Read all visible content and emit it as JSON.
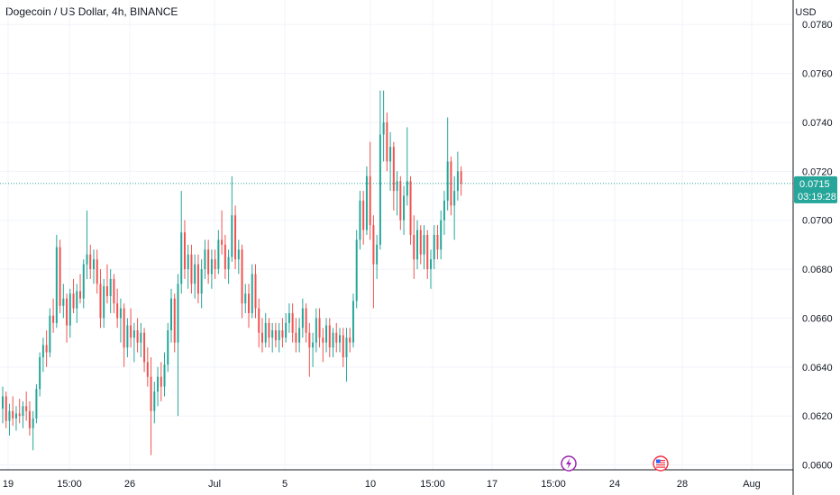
{
  "header": {
    "title": "Dogecoin / US Dollar, 4h, BINANCE",
    "currency": "USD"
  },
  "current_price": {
    "value": "0.0715",
    "countdown": "03:19:28",
    "color": "#26a69a"
  },
  "colors": {
    "up": "#26a69a",
    "down": "#ef5350",
    "grid": "#f0f3fa",
    "axis_text": "#131722",
    "event_lightning": "#9c27b0",
    "event_flag": "#f23645"
  },
  "event_icons": [
    {
      "name": "lightning-event-icon",
      "glyph": "⚡",
      "x_label": "~20 Jul"
    },
    {
      "name": "us-flag-event-icon",
      "glyph": "🇺🇸",
      "x_label": "~26 Jul"
    }
  ],
  "chart_data": {
    "type": "candlestick",
    "title": "Dogecoin / US Dollar, 4h, BINANCE",
    "interval": "4h",
    "ylim": [
      0.0598,
      0.079
    ],
    "y_ticks": [
      "0.0600",
      "0.0620",
      "0.0640",
      "0.0660",
      "0.0680",
      "0.0700",
      "0.0720",
      "0.0740",
      "0.0760",
      "0.0780"
    ],
    "x_ticks": [
      "19",
      "15:00",
      "26",
      "Jul",
      "5",
      "10",
      "15:00",
      "17",
      "15:00",
      "24",
      "28",
      "Aug"
    ],
    "grid": true,
    "candles": [
      [
        0.0623,
        0.0632,
        0.0617,
        0.0628
      ],
      [
        0.0628,
        0.063,
        0.0615,
        0.0618
      ],
      [
        0.0618,
        0.0625,
        0.0612,
        0.0622
      ],
      [
        0.0622,
        0.0628,
        0.0616,
        0.0619
      ],
      [
        0.0619,
        0.0624,
        0.0614,
        0.0621
      ],
      [
        0.0621,
        0.0627,
        0.0617,
        0.062
      ],
      [
        0.062,
        0.0626,
        0.0615,
        0.0624
      ],
      [
        0.0624,
        0.063,
        0.0618,
        0.0622
      ],
      [
        0.0622,
        0.0626,
        0.0612,
        0.0615
      ],
      [
        0.0615,
        0.0622,
        0.0606,
        0.0619
      ],
      [
        0.0619,
        0.0633,
        0.0617,
        0.0631
      ],
      [
        0.0631,
        0.0646,
        0.0628,
        0.0644
      ],
      [
        0.0644,
        0.0652,
        0.0638,
        0.0649
      ],
      [
        0.0649,
        0.0655,
        0.064,
        0.0646
      ],
      [
        0.0646,
        0.0664,
        0.0644,
        0.0661
      ],
      [
        0.0661,
        0.0668,
        0.0654,
        0.0658
      ],
      [
        0.0658,
        0.0694,
        0.0656,
        0.0689
      ],
      [
        0.0689,
        0.0692,
        0.0662,
        0.0665
      ],
      [
        0.0665,
        0.0674,
        0.066,
        0.0668
      ],
      [
        0.0668,
        0.067,
        0.065,
        0.0657
      ],
      [
        0.0657,
        0.0672,
        0.0652,
        0.067
      ],
      [
        0.067,
        0.0676,
        0.0662,
        0.0664
      ],
      [
        0.0664,
        0.0674,
        0.0658,
        0.0671
      ],
      [
        0.0671,
        0.0678,
        0.0666,
        0.0668
      ],
      [
        0.0668,
        0.0684,
        0.0664,
        0.0682
      ],
      [
        0.0682,
        0.0704,
        0.0676,
        0.0686
      ],
      [
        0.0686,
        0.069,
        0.0676,
        0.068
      ],
      [
        0.068,
        0.0688,
        0.0674,
        0.0684
      ],
      [
        0.0684,
        0.0688,
        0.067,
        0.0674
      ],
      [
        0.0674,
        0.068,
        0.0656,
        0.066
      ],
      [
        0.066,
        0.0676,
        0.0656,
        0.0673
      ],
      [
        0.0673,
        0.0682,
        0.0666,
        0.0669
      ],
      [
        0.0669,
        0.068,
        0.0662,
        0.0676
      ],
      [
        0.0676,
        0.0678,
        0.0662,
        0.0666
      ],
      [
        0.0666,
        0.0672,
        0.0656,
        0.066
      ],
      [
        0.066,
        0.0668,
        0.065,
        0.0664
      ],
      [
        0.0664,
        0.0666,
        0.064,
        0.0648
      ],
      [
        0.0648,
        0.066,
        0.0644,
        0.0657
      ],
      [
        0.0657,
        0.0664,
        0.0648,
        0.0652
      ],
      [
        0.0652,
        0.0658,
        0.0642,
        0.0655
      ],
      [
        0.0655,
        0.066,
        0.0646,
        0.065
      ],
      [
        0.065,
        0.0658,
        0.0644,
        0.0654
      ],
      [
        0.0654,
        0.0656,
        0.0638,
        0.0642
      ],
      [
        0.0642,
        0.0648,
        0.0632,
        0.0636
      ],
      [
        0.0636,
        0.0644,
        0.0604,
        0.0622
      ],
      [
        0.0622,
        0.0634,
        0.0617,
        0.063
      ],
      [
        0.063,
        0.064,
        0.0624,
        0.0636
      ],
      [
        0.0636,
        0.0642,
        0.0626,
        0.0632
      ],
      [
        0.0632,
        0.0646,
        0.0628,
        0.0641
      ],
      [
        0.0641,
        0.0658,
        0.0638,
        0.0655
      ],
      [
        0.0655,
        0.0672,
        0.065,
        0.0668
      ],
      [
        0.0668,
        0.067,
        0.0646,
        0.065
      ],
      [
        0.065,
        0.0678,
        0.062,
        0.0674
      ],
      [
        0.0674,
        0.0712,
        0.067,
        0.0695
      ],
      [
        0.0695,
        0.07,
        0.0676,
        0.068
      ],
      [
        0.068,
        0.069,
        0.0672,
        0.0686
      ],
      [
        0.0686,
        0.069,
        0.067,
        0.0674
      ],
      [
        0.0674,
        0.0686,
        0.0668,
        0.0682
      ],
      [
        0.0682,
        0.0686,
        0.0666,
        0.067
      ],
      [
        0.067,
        0.0684,
        0.0664,
        0.068
      ],
      [
        0.068,
        0.0692,
        0.0676,
        0.0688
      ],
      [
        0.0688,
        0.0692,
        0.0674,
        0.0678
      ],
      [
        0.0678,
        0.0688,
        0.0672,
        0.0684
      ],
      [
        0.0684,
        0.0688,
        0.0676,
        0.068
      ],
      [
        0.068,
        0.0696,
        0.0678,
        0.0692
      ],
      [
        0.0692,
        0.0704,
        0.0686,
        0.069
      ],
      [
        0.069,
        0.0694,
        0.0676,
        0.068
      ],
      [
        0.068,
        0.0688,
        0.0674,
        0.0685
      ],
      [
        0.0685,
        0.0718,
        0.0683,
        0.0702
      ],
      [
        0.0702,
        0.0706,
        0.068,
        0.0684
      ],
      [
        0.0684,
        0.0692,
        0.0678,
        0.0688
      ],
      [
        0.0688,
        0.069,
        0.066,
        0.0666
      ],
      [
        0.0666,
        0.0674,
        0.0662,
        0.067
      ],
      [
        0.067,
        0.0674,
        0.0656,
        0.0662
      ],
      [
        0.0662,
        0.0682,
        0.066,
        0.0678
      ],
      [
        0.0678,
        0.0682,
        0.066,
        0.0664
      ],
      [
        0.0664,
        0.0668,
        0.0648,
        0.0654
      ],
      [
        0.0654,
        0.066,
        0.0646,
        0.065
      ],
      [
        0.065,
        0.0662,
        0.0648,
        0.0658
      ],
      [
        0.0658,
        0.066,
        0.0648,
        0.0652
      ],
      [
        0.0652,
        0.0658,
        0.0646,
        0.0655
      ],
      [
        0.0655,
        0.0658,
        0.0648,
        0.0651
      ],
      [
        0.0651,
        0.0658,
        0.0646,
        0.0655
      ],
      [
        0.0655,
        0.066,
        0.0648,
        0.0652
      ],
      [
        0.0652,
        0.0662,
        0.065,
        0.0658
      ],
      [
        0.0658,
        0.0666,
        0.0654,
        0.0662
      ],
      [
        0.0662,
        0.0666,
        0.065,
        0.0654
      ],
      [
        0.0654,
        0.066,
        0.0646,
        0.065
      ],
      [
        0.065,
        0.066,
        0.0646,
        0.0656
      ],
      [
        0.0656,
        0.0668,
        0.0652,
        0.0664
      ],
      [
        0.0664,
        0.0666,
        0.065,
        0.0654
      ],
      [
        0.0654,
        0.0658,
        0.0636,
        0.0648
      ],
      [
        0.0648,
        0.0654,
        0.064,
        0.065
      ],
      [
        0.065,
        0.0664,
        0.0646,
        0.066
      ],
      [
        0.066,
        0.0664,
        0.0648,
        0.0652
      ],
      [
        0.0652,
        0.0656,
        0.0642,
        0.065
      ],
      [
        0.065,
        0.066,
        0.0646,
        0.0657
      ],
      [
        0.0657,
        0.066,
        0.0644,
        0.0648
      ],
      [
        0.0648,
        0.0656,
        0.0644,
        0.0654
      ],
      [
        0.0654,
        0.0658,
        0.0646,
        0.065
      ],
      [
        0.065,
        0.0656,
        0.0646,
        0.0653
      ],
      [
        0.0653,
        0.0656,
        0.064,
        0.0644
      ],
      [
        0.0644,
        0.0656,
        0.0634,
        0.0652
      ],
      [
        0.0652,
        0.0656,
        0.0646,
        0.065
      ],
      [
        0.065,
        0.067,
        0.0648,
        0.0667
      ],
      [
        0.0667,
        0.0696,
        0.0664,
        0.0692
      ],
      [
        0.0692,
        0.0712,
        0.0688,
        0.0708
      ],
      [
        0.0708,
        0.0712,
        0.069,
        0.0696
      ],
      [
        0.0696,
        0.0722,
        0.0694,
        0.0718
      ],
      [
        0.0718,
        0.0732,
        0.0692,
        0.0698
      ],
      [
        0.0698,
        0.0702,
        0.0664,
        0.0682
      ],
      [
        0.0682,
        0.0694,
        0.0676,
        0.069
      ],
      [
        0.069,
        0.0753,
        0.0688,
        0.0735
      ],
      [
        0.0735,
        0.0753,
        0.0724,
        0.074
      ],
      [
        0.074,
        0.0744,
        0.072,
        0.0724
      ],
      [
        0.0724,
        0.0736,
        0.0712,
        0.073
      ],
      [
        0.073,
        0.0732,
        0.0704,
        0.0712
      ],
      [
        0.0712,
        0.072,
        0.0702,
        0.0716
      ],
      [
        0.0716,
        0.0718,
        0.0696,
        0.07
      ],
      [
        0.07,
        0.0714,
        0.0694,
        0.071
      ],
      [
        0.071,
        0.0738,
        0.0706,
        0.0716
      ],
      [
        0.0716,
        0.0718,
        0.069,
        0.0694
      ],
      [
        0.0694,
        0.0702,
        0.0676,
        0.0684
      ],
      [
        0.0684,
        0.07,
        0.068,
        0.0696
      ],
      [
        0.0696,
        0.0698,
        0.0682,
        0.0686
      ],
      [
        0.0686,
        0.0698,
        0.068,
        0.0694
      ],
      [
        0.0694,
        0.0696,
        0.0676,
        0.068
      ],
      [
        0.068,
        0.0688,
        0.0672,
        0.0684
      ],
      [
        0.0684,
        0.0698,
        0.068,
        0.0694
      ],
      [
        0.0694,
        0.0698,
        0.0684,
        0.0688
      ],
      [
        0.0688,
        0.0704,
        0.0684,
        0.07
      ],
      [
        0.07,
        0.0712,
        0.0694,
        0.0708
      ],
      [
        0.0708,
        0.0742,
        0.0704,
        0.0724
      ],
      [
        0.0724,
        0.0726,
        0.0702,
        0.0706
      ],
      [
        0.0706,
        0.0718,
        0.0692,
        0.0712
      ],
      [
        0.0712,
        0.0728,
        0.0708,
        0.072
      ],
      [
        0.072,
        0.0722,
        0.071,
        0.0715
      ]
    ]
  }
}
